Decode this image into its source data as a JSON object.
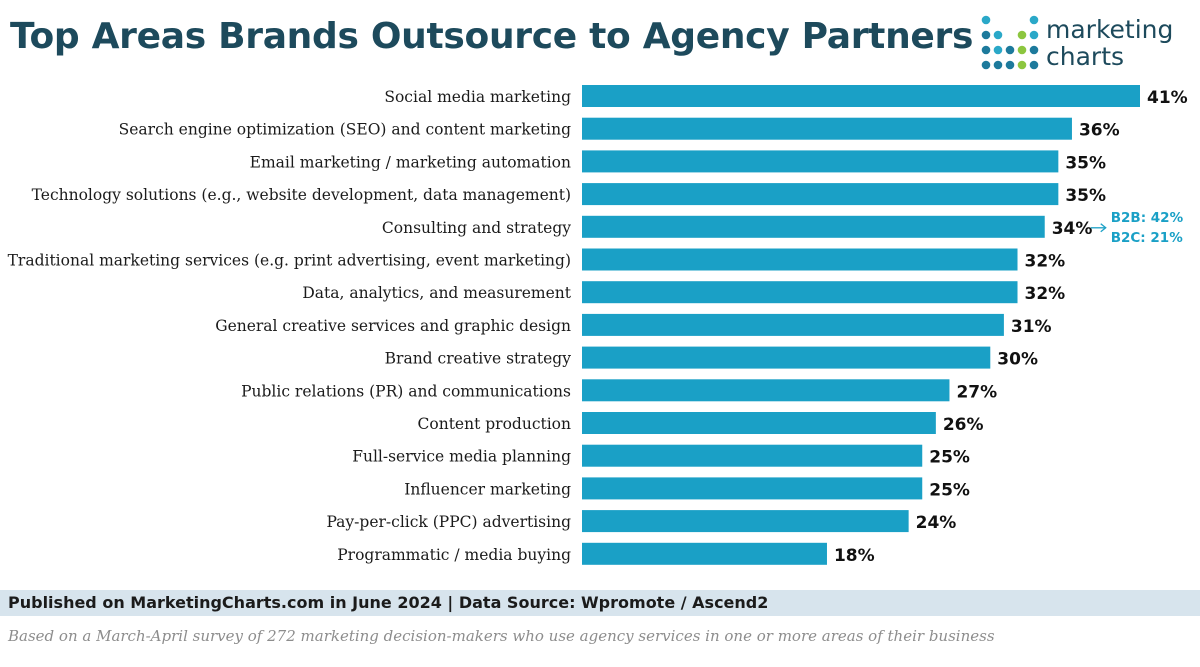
{
  "header": {
    "title": "Top Areas Brands Outsource to Agency Partners"
  },
  "logo": {
    "line1": "marketing",
    "line2": "charts",
    "icon": "dot-grid-logo-icon",
    "dot_colors": [
      "#2aa8c8",
      "#1d7a9c",
      "#8cc63f"
    ]
  },
  "colors": {
    "bar": "#1aa0c6",
    "title": "#1d4a5c",
    "annotation": "#1aa0c6",
    "footer_bg": "#d7e4ed"
  },
  "chart_data": {
    "type": "bar",
    "orientation": "horizontal",
    "title": "Top Areas Brands Outsource to Agency Partners",
    "xlabel": "",
    "ylabel": "",
    "xlim": [
      0,
      41
    ],
    "grid": false,
    "legend": "none",
    "value_suffix": "%",
    "categories": [
      "Social media marketing",
      "Search engine optimization (SEO) and content marketing",
      "Email marketing / marketing automation",
      "Technology solutions (e.g., website development, data management)",
      "Consulting and strategy",
      "Traditional marketing services (e.g. print advertising, event marketing)",
      "Data, analytics, and measurement",
      "General creative services and graphic design",
      "Brand creative strategy",
      "Public relations (PR) and communications",
      "Content production",
      "Full-service media planning",
      "Influencer marketing",
      "Pay-per-click (PPC) advertising",
      "Programmatic / media buying"
    ],
    "values": [
      41,
      36,
      35,
      35,
      34,
      32,
      32,
      31,
      30,
      27,
      26,
      25,
      25,
      24,
      18
    ],
    "annotations": [
      {
        "category_index": 4,
        "lines": [
          "B2B: 42%",
          "B2C: 21%"
        ]
      }
    ]
  },
  "footer": {
    "published": "Published on MarketingCharts.com in June 2024 | Data Source: Wpromote / Ascend2",
    "note": "Based on a March-April survey of 272 marketing decision-makers who use agency services in one or more areas of their business"
  }
}
